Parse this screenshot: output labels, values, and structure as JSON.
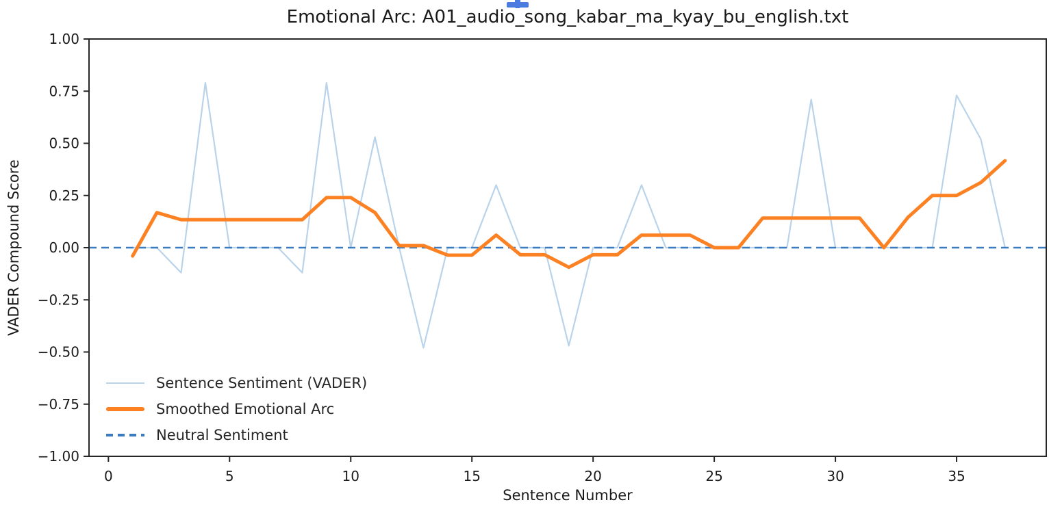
{
  "figure": {
    "title": "Emotional Arc: A01_audio_song_kabar_ma_kyay_bu_english.txt",
    "xlabel": "Sentence Number",
    "ylabel": "VADER Compound Score"
  },
  "legend": {
    "position": "lower left",
    "items": [
      {
        "label": "Sentence Sentiment (VADER)",
        "style": "thin-solid",
        "color": "#b9d3ea"
      },
      {
        "label": "Smoothed Emotional Arc",
        "style": "thick-solid",
        "color": "#fb8123"
      },
      {
        "label": "Neutral Sentiment",
        "style": "dashed",
        "color": "#3b7cc0"
      }
    ]
  },
  "colors": {
    "sentiment_line": "#b9d3ea",
    "smoothed_line": "#fb8123",
    "neutral_line": "#3b7cc0",
    "axis": "#262626",
    "text": "#1a1a1a",
    "cursor_plus": "#4b7be0"
  },
  "chart_data": {
    "type": "line",
    "title": "Emotional Arc: A01_audio_song_kabar_ma_kyay_bu_english.txt",
    "xlabel": "Sentence Number",
    "ylabel": "VADER Compound Score",
    "xlim": [
      -0.8,
      38.7
    ],
    "ylim": [
      -1.0,
      1.0
    ],
    "grid": false,
    "legend_position": "lower left",
    "x_ticks": [
      0,
      5,
      10,
      15,
      20,
      25,
      30,
      35
    ],
    "y_ticks": [
      {
        "v": 1.0,
        "label": "1.00"
      },
      {
        "v": 0.75,
        "label": "0.75"
      },
      {
        "v": 0.5,
        "label": "0.50"
      },
      {
        "v": 0.25,
        "label": "0.25"
      },
      {
        "v": 0.0,
        "label": "0.00"
      },
      {
        "v": -0.25,
        "label": "−0.25"
      },
      {
        "v": -0.5,
        "label": "−0.50"
      },
      {
        "v": -0.75,
        "label": "−0.75"
      },
      {
        "v": -1.0,
        "label": "−1.00"
      }
    ],
    "x": [
      1,
      2,
      3,
      4,
      5,
      6,
      7,
      8,
      9,
      10,
      11,
      12,
      13,
      14,
      15,
      16,
      17,
      18,
      19,
      20,
      21,
      22,
      23,
      24,
      25,
      26,
      27,
      28,
      29,
      30,
      31,
      32,
      33,
      34,
      35,
      36,
      37
    ],
    "series": [
      {
        "name": "Sentence Sentiment (VADER)",
        "color": "#b9d3ea",
        "line_width": 2.2,
        "values": [
          0.0,
          0.0,
          -0.12,
          0.79,
          0.0,
          0.0,
          0.0,
          -0.12,
          0.79,
          0.0,
          0.53,
          0.0,
          -0.48,
          0.0,
          0.0,
          0.3,
          0.0,
          0.0,
          -0.47,
          0.0,
          0.0,
          0.3,
          0.0,
          0.0,
          0.0,
          0.0,
          0.0,
          0.0,
          0.71,
          0.0,
          0.0,
          0.0,
          0.0,
          0.0,
          0.73,
          0.52,
          0.0
        ]
      },
      {
        "name": "Smoothed Emotional Arc",
        "color": "#fb8123",
        "line_width": 5,
        "values": [
          -0.04,
          0.168,
          0.134,
          0.134,
          0.134,
          0.134,
          0.134,
          0.134,
          0.24,
          0.24,
          0.168,
          0.01,
          0.01,
          -0.036,
          -0.036,
          0.06,
          -0.034,
          -0.034,
          -0.094,
          -0.034,
          -0.034,
          0.06,
          0.06,
          0.06,
          0.0,
          0.0,
          0.142,
          0.142,
          0.142,
          0.142,
          0.142,
          0.0,
          0.146,
          0.25,
          0.25,
          0.312,
          0.417
        ]
      },
      {
        "name": "Neutral Sentiment",
        "color": "#3b7cc0",
        "style": "dashed",
        "line_width": 2.6,
        "y": 0.0
      }
    ]
  }
}
